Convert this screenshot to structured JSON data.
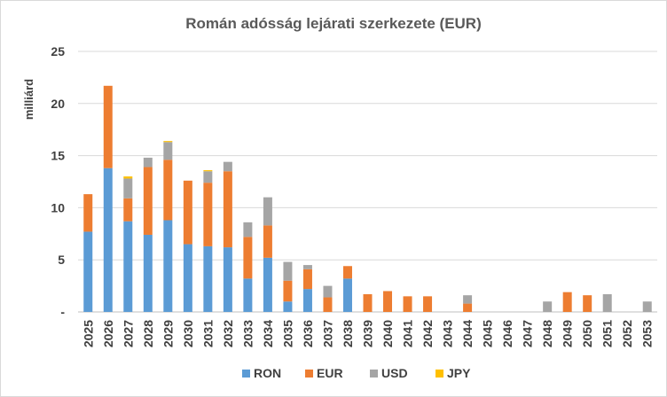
{
  "chart_data": {
    "type": "bar",
    "stacked": true,
    "title": "Román adósság lejárati szerkezete (EUR)",
    "ylabel": "milliárd",
    "xlabel": "",
    "ylim": [
      0,
      25
    ],
    "yticks": [
      0,
      5,
      10,
      15,
      20,
      25
    ],
    "ytick_labels": [
      "-",
      "5",
      "10",
      "15",
      "20",
      "25"
    ],
    "grid": true,
    "legend_position": "bottom",
    "categories": [
      "2025",
      "2026",
      "2027",
      "2028",
      "2029",
      "2030",
      "2031",
      "2032",
      "2033",
      "2034",
      "2035",
      "2036",
      "2037",
      "2038",
      "2039",
      "2040",
      "2041",
      "2042",
      "2043",
      "2044",
      "2045",
      "2046",
      "2047",
      "2048",
      "2049",
      "2050",
      "2051",
      "2052",
      "2053"
    ],
    "series": [
      {
        "name": "RON",
        "color": "#5b9bd5",
        "values": [
          7.7,
          13.8,
          8.7,
          7.4,
          8.8,
          6.5,
          6.3,
          6.2,
          3.2,
          5.2,
          1.0,
          2.2,
          0,
          3.2,
          0,
          0,
          0,
          0,
          0,
          0,
          0,
          0,
          0,
          0,
          0,
          0,
          0,
          0,
          0
        ]
      },
      {
        "name": "EUR",
        "color": "#ed7d31",
        "values": [
          3.6,
          7.9,
          2.2,
          6.5,
          5.8,
          6.1,
          6.1,
          7.3,
          4.0,
          3.1,
          2.0,
          1.9,
          1.4,
          1.2,
          1.7,
          2.0,
          1.5,
          1.5,
          0,
          0.8,
          0,
          0,
          0,
          0,
          1.9,
          1.6,
          0,
          0,
          0
        ]
      },
      {
        "name": "USD",
        "color": "#a5a5a5",
        "values": [
          0,
          0,
          1.9,
          0.9,
          1.7,
          0,
          1.1,
          0.9,
          1.4,
          2.7,
          1.8,
          0.4,
          1.1,
          0,
          0,
          0,
          0,
          0,
          0,
          0.8,
          0,
          0,
          0,
          1.0,
          0,
          0,
          1.7,
          0,
          1.0
        ]
      },
      {
        "name": "JPY",
        "color": "#ffc000",
        "values": [
          0,
          0,
          0.2,
          0,
          0.1,
          0,
          0.1,
          0,
          0,
          0,
          0,
          0,
          0,
          0,
          0,
          0,
          0,
          0,
          0,
          0,
          0,
          0,
          0,
          0,
          0,
          0,
          0,
          0,
          0
        ]
      }
    ]
  }
}
